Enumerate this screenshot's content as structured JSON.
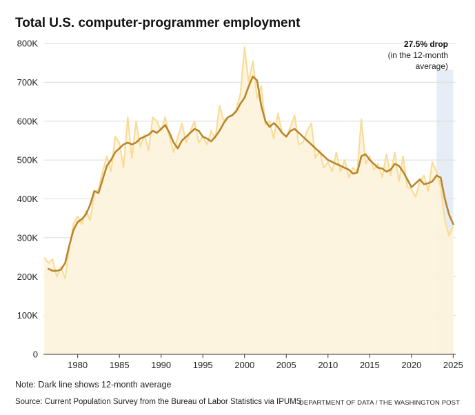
{
  "chart_data": {
    "type": "line",
    "title": "Total U.S. computer-programmer employment",
    "xlabel": "",
    "ylabel": "",
    "xlim": [
      1975.9,
      2025.3
    ],
    "ylim": [
      0,
      800000
    ],
    "grid": true,
    "x_ticks": [
      1980,
      1985,
      1990,
      1995,
      2000,
      2005,
      2010,
      2015,
      2020,
      2025
    ],
    "x_tick_labels": [
      "1980",
      "1985",
      "1990",
      "1995",
      "2000",
      "2005",
      "2010",
      "2015",
      "2020",
      "2025"
    ],
    "y_ticks": [
      0,
      100000,
      200000,
      300000,
      400000,
      500000,
      600000,
      700000,
      800000
    ],
    "y_tick_labels": [
      "0",
      "100K",
      "200K",
      "300K",
      "400K",
      "500K",
      "600K",
      "700K",
      "800K"
    ],
    "series": [
      {
        "role": "monthly",
        "color": "#f9dc98",
        "fill": "#fdf3dc",
        "x": [
          1976.0,
          1976.5,
          1977.0,
          1977.5,
          1978.0,
          1978.5,
          1979.0,
          1979.5,
          1980.0,
          1980.5,
          1981.0,
          1981.5,
          1982.0,
          1982.5,
          1983.0,
          1983.5,
          1984.0,
          1984.5,
          1985.0,
          1985.5,
          1986.0,
          1986.5,
          1987.0,
          1987.5,
          1988.0,
          1988.5,
          1989.0,
          1989.5,
          1990.0,
          1990.5,
          1991.0,
          1991.5,
          1992.0,
          1992.5,
          1993.0,
          1993.5,
          1994.0,
          1994.5,
          1995.0,
          1995.5,
          1996.0,
          1996.5,
          1997.0,
          1997.5,
          1998.0,
          1998.5,
          1999.0,
          1999.5,
          2000.0,
          2000.5,
          2001.0,
          2001.5,
          2002.0,
          2002.5,
          2003.0,
          2003.5,
          2004.0,
          2004.5,
          2005.0,
          2005.5,
          2006.0,
          2006.5,
          2007.0,
          2007.5,
          2008.0,
          2008.5,
          2009.0,
          2009.5,
          2010.0,
          2010.5,
          2011.0,
          2011.5,
          2012.0,
          2012.5,
          2013.0,
          2013.5,
          2014.0,
          2014.5,
          2015.0,
          2015.5,
          2016.0,
          2016.5,
          2017.0,
          2017.5,
          2018.0,
          2018.5,
          2019.0,
          2019.5,
          2020.0,
          2020.5,
          2021.0,
          2021.5,
          2022.0,
          2022.5,
          2023.0,
          2023.5,
          2024.0,
          2024.5,
          2025.0
        ],
        "values": [
          250000,
          235000,
          245000,
          200000,
          225000,
          195000,
          275000,
          335000,
          355000,
          335000,
          370000,
          345000,
          415000,
          425000,
          470000,
          510000,
          470000,
          560000,
          545000,
          480000,
          610000,
          505000,
          600000,
          535000,
          565000,
          525000,
          610000,
          600000,
          575000,
          610000,
          560000,
          520000,
          560000,
          595000,
          545000,
          575000,
          600000,
          545000,
          560000,
          540000,
          575000,
          555000,
          640000,
          600000,
          610000,
          615000,
          630000,
          670000,
          790000,
          700000,
          755000,
          660000,
          690000,
          590000,
          600000,
          555000,
          620000,
          570000,
          560000,
          585000,
          615000,
          540000,
          545000,
          575000,
          595000,
          505000,
          525000,
          480000,
          495000,
          470000,
          520000,
          470000,
          500000,
          455000,
          480000,
          470000,
          605000,
          490000,
          510000,
          475000,
          490000,
          455000,
          515000,
          460000,
          520000,
          445000,
          510000,
          430000,
          425000,
          405000,
          445000,
          460000,
          420000,
          495000,
          470000,
          430000,
          345000,
          305000,
          330000
        ]
      },
      {
        "role": "12-month average",
        "color": "#b8862a",
        "x": [
          1976.5,
          1977.0,
          1977.5,
          1978.0,
          1978.5,
          1979.0,
          1979.5,
          1980.0,
          1980.5,
          1981.0,
          1981.5,
          1982.0,
          1982.5,
          1983.0,
          1983.5,
          1984.0,
          1984.5,
          1985.0,
          1985.5,
          1986.0,
          1986.5,
          1987.0,
          1987.5,
          1988.0,
          1988.5,
          1989.0,
          1989.5,
          1990.0,
          1990.5,
          1991.0,
          1991.5,
          1992.0,
          1992.5,
          1993.0,
          1993.5,
          1994.0,
          1994.5,
          1995.0,
          1995.5,
          1996.0,
          1996.5,
          1997.0,
          1997.5,
          1998.0,
          1998.5,
          1999.0,
          1999.5,
          2000.0,
          2000.5,
          2001.0,
          2001.5,
          2002.0,
          2002.5,
          2003.0,
          2003.5,
          2004.0,
          2004.5,
          2005.0,
          2005.5,
          2006.0,
          2006.5,
          2007.0,
          2007.5,
          2008.0,
          2008.5,
          2009.0,
          2009.5,
          2010.0,
          2010.5,
          2011.0,
          2011.5,
          2012.0,
          2012.5,
          2013.0,
          2013.5,
          2014.0,
          2014.5,
          2015.0,
          2015.5,
          2016.0,
          2016.5,
          2017.0,
          2017.5,
          2018.0,
          2018.5,
          2019.0,
          2019.5,
          2020.0,
          2020.5,
          2021.0,
          2021.5,
          2022.0,
          2022.5,
          2023.0,
          2023.5,
          2024.0,
          2024.5,
          2025.0
        ],
        "values": [
          220000,
          215000,
          215000,
          218000,
          235000,
          280000,
          320000,
          340000,
          348000,
          360000,
          385000,
          420000,
          415000,
          450000,
          485000,
          500000,
          520000,
          530000,
          540000,
          545000,
          540000,
          545000,
          555000,
          560000,
          565000,
          575000,
          570000,
          580000,
          590000,
          570000,
          545000,
          530000,
          550000,
          560000,
          570000,
          580000,
          575000,
          560000,
          555000,
          548000,
          560000,
          575000,
          595000,
          610000,
          615000,
          625000,
          645000,
          660000,
          690000,
          715000,
          705000,
          640000,
          600000,
          585000,
          595000,
          585000,
          570000,
          560000,
          575000,
          580000,
          570000,
          560000,
          550000,
          540000,
          530000,
          520000,
          510000,
          500000,
          495000,
          490000,
          485000,
          480000,
          475000,
          465000,
          468000,
          510000,
          515000,
          500000,
          490000,
          480000,
          478000,
          470000,
          475000,
          490000,
          485000,
          470000,
          450000,
          430000,
          440000,
          450000,
          438000,
          440000,
          445000,
          460000,
          455000,
          400000,
          360000,
          335000
        ]
      }
    ],
    "highlight": {
      "x_range": [
        2023.0,
        2025.0
      ],
      "color": "#e3eaf3"
    },
    "annotation": {
      "bold": "27.5% drop",
      "line1": "(in the 12-month",
      "line2": "average)"
    }
  },
  "note": "Note: Dark line shows 12-month average",
  "source": "Source: Current Population Survey from the Bureau of Labor Statistics via IPUMS",
  "credit": "DEPARTMENT OF DATA / THE WASHINGTON POST"
}
